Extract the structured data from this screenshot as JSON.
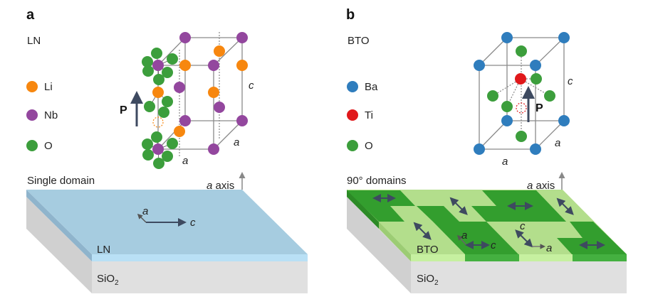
{
  "panel_a": {
    "letter": "a",
    "material": "LN",
    "legend": [
      {
        "label": "Li",
        "color": "#f7870f"
      },
      {
        "label": "Nb",
        "color": "#93479e"
      },
      {
        "label": "O",
        "color": "#3c9e3c"
      }
    ],
    "polarization": "P",
    "axis_c": "c",
    "axis_a1": "a",
    "axis_a2": "a",
    "slab_title": "Single domain",
    "a_axis": {
      "italic": "a",
      "rest": "axis"
    },
    "in_plane_a": "a",
    "in_plane_c": "c",
    "film": "LN",
    "substrate": {
      "base": "SiO",
      "sub": "2"
    },
    "film_color": "#a6cce0"
  },
  "panel_b": {
    "letter": "b",
    "material": "BTO",
    "legend": [
      {
        "label": "Ba",
        "color": "#2f7dbd"
      },
      {
        "label": "Ti",
        "color": "#e0181b"
      },
      {
        "label": "O",
        "color": "#3c9e3c"
      }
    ],
    "polarization": "P",
    "axis_c": "c",
    "axis_a1": "a",
    "axis_a2": "a",
    "slab_title": "90° domains",
    "a_axis": {
      "italic": "a",
      "rest": "axis"
    },
    "domain1": {
      "a": "a",
      "c": "c"
    },
    "domain2": {
      "c": "c",
      "a": "a"
    },
    "film": "BTO",
    "substrate": {
      "base": "SiO",
      "sub": "2"
    },
    "domain_colors": {
      "dark": "#339e2e",
      "light": "#b3de8c"
    }
  }
}
